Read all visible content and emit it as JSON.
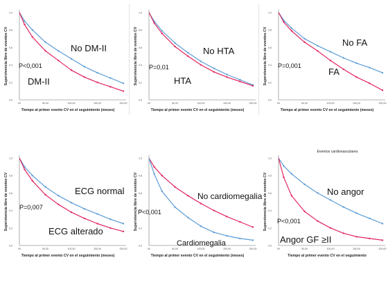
{
  "chart_data": [
    {
      "type": "line",
      "title": "",
      "xlabel": "Tiempo al primer evento CV en el seguimiento (meses)",
      "ylabel": "Supervivencia libre de eventos CV",
      "xticks": [
        "00",
        "50,00",
        "100,00",
        "150,00",
        "200,00"
      ],
      "yticks": [
        "0,0",
        "0,2",
        "0,4",
        "0,6",
        "0,8",
        "1,0"
      ],
      "xlim": [
        0,
        200
      ],
      "ylim": [
        0,
        1
      ],
      "pvalue": "P<0,001",
      "series": [
        {
          "name": "No DM-II",
          "color": "#5b9bd5",
          "x": [
            0,
            10,
            25,
            50,
            75,
            100,
            125,
            150,
            175,
            200
          ],
          "y": [
            1.0,
            0.9,
            0.8,
            0.66,
            0.56,
            0.47,
            0.38,
            0.31,
            0.25,
            0.19
          ]
        },
        {
          "name": "DM-II",
          "color": "#e0245e",
          "x": [
            0,
            10,
            25,
            50,
            75,
            100,
            125,
            150,
            175,
            200
          ],
          "y": [
            1.0,
            0.86,
            0.72,
            0.56,
            0.45,
            0.34,
            0.26,
            0.2,
            0.15,
            0.1
          ]
        }
      ]
    },
    {
      "type": "line",
      "title": "",
      "xlabel": "Tiempo al primer evento CV en el seguimiento (meses)",
      "ylabel": "Supervivencia libre de eventos CV",
      "xticks": [
        "00",
        "50,00",
        "100,00",
        "150,00",
        "200,00"
      ],
      "yticks": [
        "0,0",
        "0,2",
        "0,4",
        "0,6",
        "0,8",
        "1,0"
      ],
      "xlim": [
        0,
        200
      ],
      "ylim": [
        0,
        1
      ],
      "pvalue": "P=0,01",
      "series": [
        {
          "name": "No HTA",
          "color": "#5b9bd5",
          "x": [
            0,
            10,
            25,
            50,
            75,
            100,
            125,
            150,
            175,
            200
          ],
          "y": [
            1.0,
            0.9,
            0.79,
            0.65,
            0.54,
            0.44,
            0.36,
            0.29,
            0.23,
            0.17
          ]
        },
        {
          "name": "HTA",
          "color": "#e0245e",
          "x": [
            0,
            10,
            25,
            50,
            75,
            100,
            125,
            150,
            175,
            200
          ],
          "y": [
            1.0,
            0.88,
            0.76,
            0.61,
            0.5,
            0.4,
            0.32,
            0.26,
            0.21,
            0.16
          ]
        }
      ]
    },
    {
      "type": "line",
      "title": "",
      "xlabel": "Tiempo al primer evento CV en el seguimiento (meses)",
      "ylabel": "Supervivencia libre de eventos CV",
      "xticks": [
        "00",
        "50,00",
        "100,00",
        "150,00",
        "200,00"
      ],
      "yticks": [
        "0,0",
        "0,2",
        "0,4",
        "0,6",
        "0,8",
        "1,0"
      ],
      "xlim": [
        0,
        200
      ],
      "ylim": [
        0,
        1
      ],
      "pvalue": "P=0,001",
      "series": [
        {
          "name": "No FA",
          "color": "#5b9bd5",
          "x": [
            0,
            10,
            25,
            50,
            75,
            100,
            125,
            150,
            175,
            200
          ],
          "y": [
            1.0,
            0.91,
            0.82,
            0.7,
            0.62,
            0.55,
            0.48,
            0.42,
            0.37,
            0.31
          ]
        },
        {
          "name": "FA",
          "color": "#e0245e",
          "x": [
            0,
            10,
            25,
            50,
            75,
            100,
            125,
            150,
            175,
            200
          ],
          "y": [
            1.0,
            0.89,
            0.79,
            0.66,
            0.56,
            0.45,
            0.35,
            0.26,
            0.19,
            0.11
          ]
        }
      ]
    },
    {
      "type": "line",
      "title": "",
      "xlabel": "Tiempo al primer evento CV en el seguimiento (meses)",
      "ylabel": "Supervivencia libre de eventos CV",
      "xticks": [
        "00",
        "50,00",
        "100,00",
        "150,00",
        "200,00"
      ],
      "yticks": [
        "0,0",
        "0,2",
        "0,4",
        "0,6",
        "0,8",
        "1,0"
      ],
      "xlim": [
        0,
        200
      ],
      "ylim": [
        0,
        1
      ],
      "pvalue": "P=0,007",
      "series": [
        {
          "name": "ECG normal",
          "color": "#5b9bd5",
          "x": [
            0,
            10,
            25,
            50,
            75,
            100,
            125,
            150,
            175,
            200
          ],
          "y": [
            1.0,
            0.9,
            0.8,
            0.67,
            0.57,
            0.49,
            0.42,
            0.36,
            0.3,
            0.25
          ]
        },
        {
          "name": "ECG alterado",
          "color": "#e0245e",
          "x": [
            0,
            10,
            25,
            50,
            75,
            100,
            125,
            150,
            175,
            200
          ],
          "y": [
            1.0,
            0.87,
            0.74,
            0.58,
            0.47,
            0.38,
            0.31,
            0.25,
            0.2,
            0.16
          ]
        }
      ]
    },
    {
      "type": "line",
      "title": "",
      "xlabel": "Tiempo al primer evento CV en el seguimiento (meses)",
      "ylabel": "Supervivencia libre de eventos CV",
      "xticks": [
        "00",
        "50,00",
        "100,00",
        "150,00",
        "200,00"
      ],
      "yticks": [
        "0,0",
        "0,2",
        "0,4",
        "0,6",
        "0,8",
        "1,0"
      ],
      "xlim": [
        0,
        200
      ],
      "ylim": [
        0,
        1
      ],
      "pvalue": "P<0,001",
      "series": [
        {
          "name": "No cardiomegalia",
          "color": "#e0245e",
          "x": [
            0,
            10,
            25,
            50,
            75,
            100,
            125,
            150,
            175,
            200
          ],
          "y": [
            1.0,
            0.9,
            0.8,
            0.67,
            0.57,
            0.48,
            0.4,
            0.33,
            0.27,
            0.21
          ]
        },
        {
          "name": "Cardiomegalia",
          "color": "#5b9bd5",
          "x": [
            0,
            10,
            25,
            50,
            75,
            100,
            125,
            150,
            175,
            200
          ],
          "y": [
            1.0,
            0.82,
            0.62,
            0.44,
            0.32,
            0.22,
            0.15,
            0.11,
            0.08,
            0.06
          ]
        }
      ]
    },
    {
      "type": "line",
      "title": "Eventos cardiovasculares",
      "xlabel": "Tiempo al primer evento CV en el seguimiento",
      "ylabel": "Supervivencia libre de eventos CV",
      "xticks": [
        "00",
        "50,00",
        "100,00",
        "150,00",
        "200,00"
      ],
      "yticks": [
        "0,0",
        "0,2",
        "0,4",
        "0,6",
        "0,8",
        "1,0"
      ],
      "xlim": [
        0,
        200
      ],
      "ylim": [
        0,
        1
      ],
      "pvalue": "P<0,001",
      "series": [
        {
          "name": "No angor",
          "color": "#5b9bd5",
          "x": [
            0,
            10,
            25,
            50,
            75,
            100,
            125,
            150,
            175,
            200
          ],
          "y": [
            1.0,
            0.91,
            0.82,
            0.7,
            0.6,
            0.52,
            0.44,
            0.37,
            0.31,
            0.25
          ]
        },
        {
          "name": "Angor GF ≥II",
          "color": "#e0245e",
          "x": [
            0,
            10,
            25,
            50,
            75,
            100,
            125,
            150,
            175,
            200
          ],
          "y": [
            1.0,
            0.78,
            0.57,
            0.39,
            0.28,
            0.2,
            0.14,
            0.1,
            0.08,
            0.06
          ]
        }
      ]
    }
  ]
}
